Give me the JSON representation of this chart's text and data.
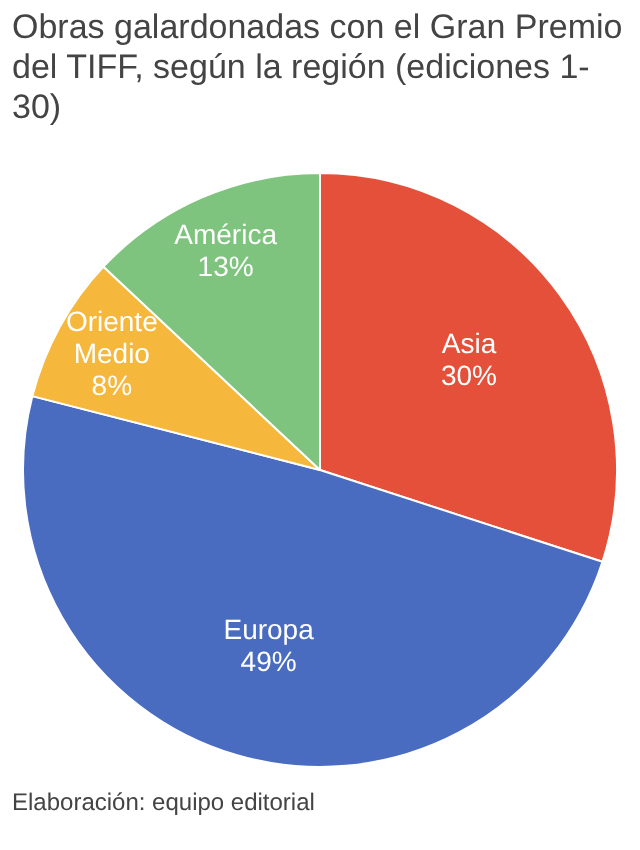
{
  "chart_data": {
    "type": "pie",
    "title": "Obras galardonadas con el Gran Premio del TIFF, según la región (ediciones 1-30)",
    "categories": [
      "Asia",
      "Europa",
      "Oriente Medio",
      "América"
    ],
    "values": [
      30,
      49,
      8,
      13
    ],
    "colors": [
      "#e4503a",
      "#4a6cc0",
      "#f5b83d",
      "#7ec47e"
    ],
    "value_labels": [
      "30%",
      "49%",
      "8%",
      "13%"
    ],
    "legend": false,
    "annotations": [
      "Elaboración: equipo editorial"
    ]
  }
}
